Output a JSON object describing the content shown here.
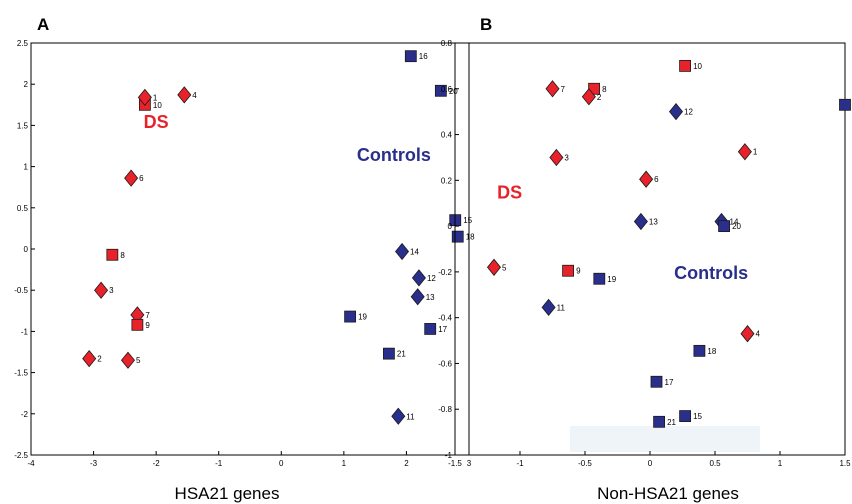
{
  "colors": {
    "ds": "#e8222b",
    "controls": "#2a2f8c",
    "outline": "#1a1a1a"
  },
  "chart_data": [
    {
      "type": "scatter",
      "panel_letter": "A",
      "xlabel": "HSA21 genes",
      "ylabel": "",
      "xlim": [
        -4,
        3
      ],
      "ylim": [
        -2.5,
        2.5
      ],
      "xticks": [
        -4,
        -3,
        -2,
        -1,
        0,
        1,
        2,
        3
      ],
      "yticks": [
        2.5,
        2,
        1.5,
        1,
        0.5,
        0,
        -0.5,
        -1,
        -1.5,
        -2,
        -2.5
      ],
      "xtick_labels": [
        "-4",
        "-3",
        "-2",
        "-1",
        "0",
        "1",
        "2",
        "3"
      ],
      "ytick_labels": [
        "2.5",
        "2",
        "1.5",
        "1",
        "0.5",
        "0",
        "-0.5",
        "-1",
        "-1.5",
        "-2",
        "-2.5"
      ],
      "group_labels": [
        {
          "text": "DS",
          "group": "ds",
          "x": -2.0,
          "y": 1.47
        },
        {
          "text": "Controls",
          "group": "controls",
          "x": 1.8,
          "y": 1.07
        }
      ],
      "points": [
        {
          "label": "10",
          "group": "ds",
          "marker": "square",
          "x": -2.18,
          "y": 1.75
        },
        {
          "label": "1",
          "group": "ds",
          "marker": "diamond",
          "x": -2.18,
          "y": 1.84
        },
        {
          "label": "4",
          "group": "ds",
          "marker": "diamond",
          "x": -1.55,
          "y": 1.87
        },
        {
          "label": "6",
          "group": "ds",
          "marker": "diamond",
          "x": -2.4,
          "y": 0.86
        },
        {
          "label": "8",
          "group": "ds",
          "marker": "square",
          "x": -2.7,
          "y": -0.07
        },
        {
          "label": "3",
          "group": "ds",
          "marker": "diamond",
          "x": -2.88,
          "y": -0.5
        },
        {
          "label": "7",
          "group": "ds",
          "marker": "diamond",
          "x": -2.3,
          "y": -0.8
        },
        {
          "label": "9",
          "group": "ds",
          "marker": "square",
          "x": -2.3,
          "y": -0.92
        },
        {
          "label": "2",
          "group": "ds",
          "marker": "diamond",
          "x": -3.07,
          "y": -1.33
        },
        {
          "label": "5",
          "group": "ds",
          "marker": "diamond",
          "x": -2.45,
          "y": -1.35
        },
        {
          "label": "16",
          "group": "controls",
          "marker": "square",
          "x": 2.07,
          "y": 2.34
        },
        {
          "label": "20",
          "group": "controls",
          "marker": "square",
          "x": 2.55,
          "y": 1.92
        },
        {
          "label": "15",
          "group": "controls",
          "marker": "square",
          "x": 2.78,
          "y": 0.35
        },
        {
          "label": "18",
          "group": "controls",
          "marker": "square",
          "x": 2.82,
          "y": 0.15
        },
        {
          "label": "14",
          "group": "controls",
          "marker": "diamond",
          "x": 1.93,
          "y": -0.03
        },
        {
          "label": "12",
          "group": "controls",
          "marker": "diamond",
          "x": 2.2,
          "y": -0.35
        },
        {
          "label": "13",
          "group": "controls",
          "marker": "diamond",
          "x": 2.18,
          "y": -0.58
        },
        {
          "label": "19",
          "group": "controls",
          "marker": "square",
          "x": 1.1,
          "y": -0.82
        },
        {
          "label": "17",
          "group": "controls",
          "marker": "square",
          "x": 2.38,
          "y": -0.97
        },
        {
          "label": "21",
          "group": "controls",
          "marker": "square",
          "x": 1.72,
          "y": -1.27
        },
        {
          "label": "11",
          "group": "controls",
          "marker": "diamond",
          "x": 1.87,
          "y": -2.03
        }
      ]
    },
    {
      "type": "scatter",
      "panel_letter": "B",
      "xlabel": "Non-HSA21 genes",
      "ylabel": "",
      "xlim": [
        -1.5,
        1.5
      ],
      "ylim": [
        -1,
        0.8
      ],
      "xticks": [
        -1.5,
        -1,
        -0.5,
        0,
        0.5,
        1,
        1.5
      ],
      "yticks": [
        0.8,
        0.6,
        0.4,
        0.2,
        0,
        -0.2,
        -0.4,
        -0.6,
        -0.8,
        -1
      ],
      "xtick_labels": [
        "-1.5",
        "-1",
        "-0.5",
        "0",
        "0.5",
        "1",
        "1.5"
      ],
      "ytick_labels": [
        "0.8",
        "0.6",
        "0.4",
        "0.2",
        "0",
        "-0.2",
        "-0.4",
        "-0.6",
        "-0.8",
        "-1"
      ],
      "group_labels": [
        {
          "text": "DS",
          "group": "ds",
          "x": -1.08,
          "y": 0.12
        },
        {
          "text": "Controls",
          "group": "controls",
          "x": 0.47,
          "y": -0.23
        }
      ],
      "points": [
        {
          "label": "10",
          "group": "ds",
          "marker": "square",
          "x": 0.27,
          "y": 0.7
        },
        {
          "label": "7",
          "group": "ds",
          "marker": "diamond",
          "x": -0.75,
          "y": 0.6
        },
        {
          "label": "8",
          "group": "ds",
          "marker": "square",
          "x": -0.43,
          "y": 0.6
        },
        {
          "label": "2",
          "group": "ds",
          "marker": "diamond",
          "x": -0.47,
          "y": 0.565
        },
        {
          "label": "1",
          "group": "ds",
          "marker": "diamond",
          "x": 0.73,
          "y": 0.325
        },
        {
          "label": "3",
          "group": "ds",
          "marker": "diamond",
          "x": -0.72,
          "y": 0.3
        },
        {
          "label": "6",
          "group": "ds",
          "marker": "diamond",
          "x": -0.03,
          "y": 0.205
        },
        {
          "label": "9",
          "group": "ds",
          "marker": "square",
          "x": -0.63,
          "y": -0.195
        },
        {
          "label": "5",
          "group": "ds",
          "marker": "diamond",
          "x": -1.2,
          "y": -0.18
        },
        {
          "label": "4",
          "group": "ds",
          "marker": "diamond",
          "x": 0.75,
          "y": -0.47
        },
        {
          "label": "",
          "group": "controls",
          "marker": "square",
          "x": 1.5,
          "y": 0.53
        },
        {
          "label": "12",
          "group": "controls",
          "marker": "diamond",
          "x": 0.2,
          "y": 0.5
        },
        {
          "label": "13",
          "group": "controls",
          "marker": "diamond",
          "x": -0.07,
          "y": 0.02
        },
        {
          "label": "14",
          "group": "controls",
          "marker": "diamond",
          "x": 0.55,
          "y": 0.02
        },
        {
          "label": "20",
          "group": "controls",
          "marker": "square",
          "x": 0.57,
          "y": 0.0
        },
        {
          "label": "19",
          "group": "controls",
          "marker": "square",
          "x": -0.39,
          "y": -0.23
        },
        {
          "label": "11",
          "group": "controls",
          "marker": "diamond",
          "x": -0.78,
          "y": -0.355
        },
        {
          "label": "18",
          "group": "controls",
          "marker": "square",
          "x": 0.38,
          "y": -0.545
        },
        {
          "label": "17",
          "group": "controls",
          "marker": "square",
          "x": 0.05,
          "y": -0.68
        },
        {
          "label": "15",
          "group": "controls",
          "marker": "square",
          "x": 0.27,
          "y": -0.83
        },
        {
          "label": "21",
          "group": "controls",
          "marker": "square",
          "x": 0.07,
          "y": -0.855
        }
      ]
    }
  ]
}
